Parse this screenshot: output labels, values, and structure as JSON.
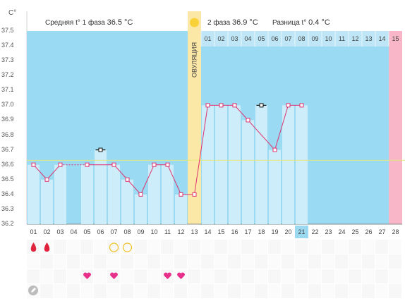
{
  "chart_data": {
    "type": "line",
    "title": "",
    "y_unit": "С°",
    "ylim": [
      36.2,
      37.5
    ],
    "y_ticks": [
      "36.2",
      "36.3",
      "36.4",
      "36.5",
      "36.6",
      "36.7",
      "36.8",
      "36.9",
      "37.0",
      "37.1",
      "37.2",
      "37.3",
      "37.4",
      "37.5"
    ],
    "coverline": 36.63,
    "x": [
      "01",
      "02",
      "03",
      "04",
      "05",
      "06",
      "07",
      "08",
      "09",
      "10",
      "11",
      "12",
      "13",
      "14",
      "15",
      "16",
      "17",
      "18",
      "19",
      "20",
      "21",
      "22",
      "23",
      "24",
      "25",
      "26",
      "27",
      "28"
    ],
    "series": [
      {
        "values": [
          36.6,
          36.5,
          36.6,
          null,
          36.6,
          36.7,
          36.6,
          36.5,
          36.4,
          36.6,
          36.6,
          36.4,
          36.4,
          37.0,
          37.0,
          37.0,
          36.9,
          37.0,
          36.7,
          37.0,
          37.0,
          null,
          null,
          null,
          null,
          null,
          null,
          null
        ]
      }
    ],
    "excluded_days": [
      6,
      18
    ],
    "ovulation_day": 13,
    "ovulation_label": "ОВУЛЯЦИЯ",
    "today_day": 21,
    "expected_period_day": 28,
    "phase2_day_labels": [
      "01",
      "02",
      "03",
      "04",
      "05",
      "06",
      "07",
      "08",
      "09",
      "10",
      "11",
      "12",
      "13",
      "14",
      "15"
    ],
    "phase1": {
      "label": "Средняя t° 1 фаза",
      "value": "36.5 °C"
    },
    "phase2": {
      "label": "2 фаза",
      "value": "36.9 °C"
    },
    "difference": {
      "label": "Разница t°",
      "value": "0.4 °C"
    },
    "colors": {
      "phase_background": "#9adaf2",
      "bar": "#cdedfa",
      "line": "#e0336e",
      "ovulation": "#fbe8a6",
      "period_expected": "#f8b6c8",
      "coverline": "#e6e67a",
      "today": "#9bd9f0"
    },
    "markers": {
      "menstruation_days": [
        1,
        2
      ],
      "circle_days": [
        7,
        8
      ],
      "heart_days": [
        5,
        7,
        11,
        12
      ]
    },
    "icons": [
      "drop-icon",
      "circle-icon",
      "heart-icon",
      "pencil-icon",
      "ovulation-sun-icon"
    ]
  }
}
